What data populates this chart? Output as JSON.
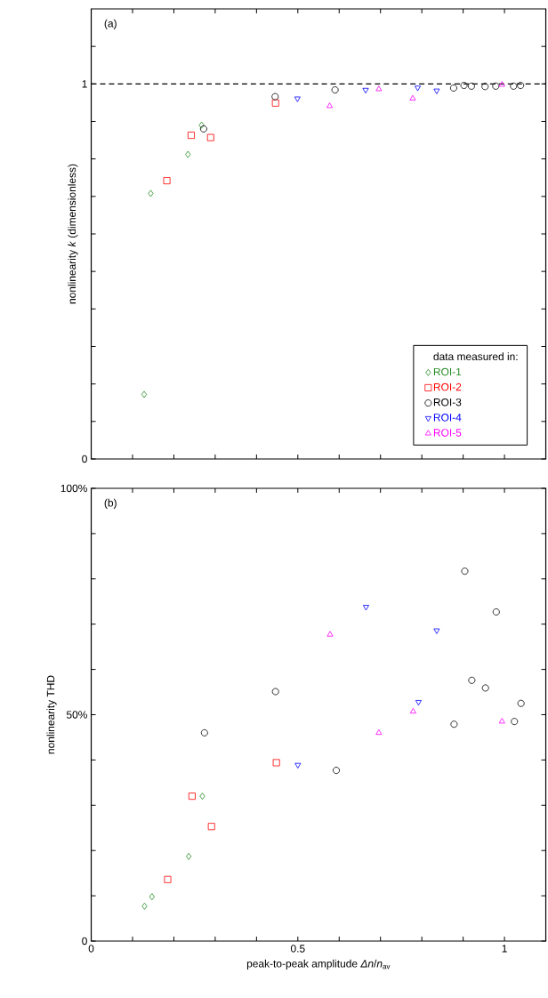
{
  "chart_data": [
    {
      "type": "scatter",
      "ylabel": "nonlinearity *k* (dimensionless)",
      "legend_title": "data measured in:",
      "legend": "bottom right",
      "tick_labels": "y",
      "annotations": [
        "(a)"
      ],
      "xlim": [
        0,
        1.1
      ],
      "ylim": [
        0,
        1.2
      ],
      "xticks": [
        0,
        {
          "value": 0.1,
          "label": null
        },
        {
          "value": 0.2,
          "label": null
        },
        {
          "value": 0.3,
          "label": null
        },
        {
          "value": 0.4,
          "label": null
        },
        0.5,
        {
          "value": 0.6,
          "label": null
        },
        {
          "value": 0.7,
          "label": null
        },
        {
          "value": 0.8,
          "label": null
        },
        {
          "value": 0.9,
          "label": null
        },
        1,
        {
          "value": 1.1,
          "label": null
        }
      ],
      "yticks": [
        0,
        {
          "value": 0.1,
          "label": null
        },
        {
          "value": 0.2,
          "label": null
        },
        {
          "value": 0.3,
          "label": null
        },
        {
          "value": 0.4,
          "label": null
        },
        {
          "value": 0.5,
          "label": null
        },
        {
          "value": 0.6,
          "label": null
        },
        {
          "value": 0.7,
          "label": null
        },
        {
          "value": 0.8,
          "label": null
        },
        {
          "value": 0.9,
          "label": null
        },
        1,
        {
          "value": 1.1,
          "label": null
        }
      ],
      "ref_lines": [
        {
          "axis": "y",
          "value": 1,
          "color": "#000000",
          "line_style": "dashed"
        }
      ],
      "series": [
        {
          "name": "ROI-1",
          "color": "#228b22",
          "marker": "diamond",
          "x": [
            0.128,
            0.144,
            0.234,
            0.267
          ],
          "values": [
            0.172,
            0.708,
            0.812,
            0.89
          ]
        },
        {
          "name": "ROI-2",
          "color": "#ff0000",
          "marker": "square",
          "x": [
            0.183,
            0.242,
            0.289,
            0.446
          ],
          "values": [
            0.742,
            0.863,
            0.857,
            0.949
          ]
        },
        {
          "name": "ROI-3",
          "color": "#000000",
          "marker": "circle",
          "x": [
            0.272,
            0.445,
            0.59,
            0.877,
            0.902,
            0.92,
            0.953,
            0.979,
            1.022,
            1.039
          ],
          "values": [
            0.88,
            0.966,
            0.984,
            0.989,
            0.996,
            0.994,
            0.993,
            0.994,
            0.994,
            0.996
          ]
        },
        {
          "name": "ROI-4",
          "color": "#0000ff",
          "marker": "triangle-down",
          "x": [
            0.499,
            0.664,
            0.79,
            0.836
          ],
          "values": [
            0.961,
            0.984,
            0.99,
            0.982
          ]
        },
        {
          "name": "ROI-5",
          "color": "#ff00ff",
          "marker": "triangle",
          "x": [
            0.577,
            0.696,
            0.778,
            0.994
          ],
          "values": [
            0.941,
            0.986,
            0.961,
            0.998
          ]
        }
      ]
    },
    {
      "type": "scatter",
      "xlabel": "peak-to-peak amplitude *Δn*/*n*$_{av}$",
      "ylabel": "nonlinearity THD",
      "legend": false,
      "annotations": [
        "(b)"
      ],
      "xlim": [
        0,
        1.1
      ],
      "ylim": [
        0,
        100
      ],
      "xticks": [
        0,
        {
          "value": 0.1,
          "label": null
        },
        {
          "value": 0.2,
          "label": null
        },
        {
          "value": 0.3,
          "label": null
        },
        {
          "value": 0.4,
          "label": null
        },
        0.5,
        {
          "value": 0.6,
          "label": null
        },
        {
          "value": 0.7,
          "label": null
        },
        {
          "value": 0.8,
          "label": null
        },
        {
          "value": 0.9,
          "label": null
        },
        1,
        {
          "value": 1.1,
          "label": null
        }
      ],
      "yticks": [
        0,
        {
          "value": 10,
          "label": null
        },
        {
          "value": 20,
          "label": null
        },
        {
          "value": 30,
          "label": null
        },
        {
          "value": 40,
          "label": null
        },
        {
          "value": 50,
          "label": "50%"
        },
        {
          "value": 60,
          "label": null
        },
        {
          "value": 70,
          "label": null
        },
        {
          "value": 80,
          "label": null
        },
        {
          "value": 90,
          "label": null
        },
        {
          "value": 100,
          "label": "100%"
        }
      ],
      "series": [
        {
          "color": "#228b22",
          "marker": "diamond",
          "x": [
            0.129,
            0.147,
            0.236,
            0.269
          ],
          "values": [
            7.7,
            9.8,
            18.7,
            32.0
          ]
        },
        {
          "color": "#ff0000",
          "marker": "square",
          "x": [
            0.185,
            0.244,
            0.291,
            0.448
          ],
          "values": [
            13.6,
            32.0,
            25.3,
            39.4
          ]
        },
        {
          "color": "#000000",
          "marker": "circle",
          "x": [
            0.274,
            0.446,
            0.593,
            0.878,
            0.904,
            0.921,
            0.954,
            0.98,
            1.024,
            1.04
          ],
          "values": [
            46.0,
            55.1,
            37.7,
            47.9,
            81.7,
            57.6,
            55.9,
            72.7,
            48.5,
            52.5
          ]
        },
        {
          "color": "#0000ff",
          "marker": "triangle-down",
          "x": [
            0.5,
            0.665,
            0.792,
            0.836
          ],
          "values": [
            38.9,
            73.8,
            52.8,
            68.6
          ]
        },
        {
          "color": "#ff00ff",
          "marker": "triangle",
          "x": [
            0.578,
            0.696,
            0.779,
            0.994
          ],
          "values": [
            67.7,
            46.0,
            50.7,
            48.5
          ]
        }
      ]
    }
  ]
}
